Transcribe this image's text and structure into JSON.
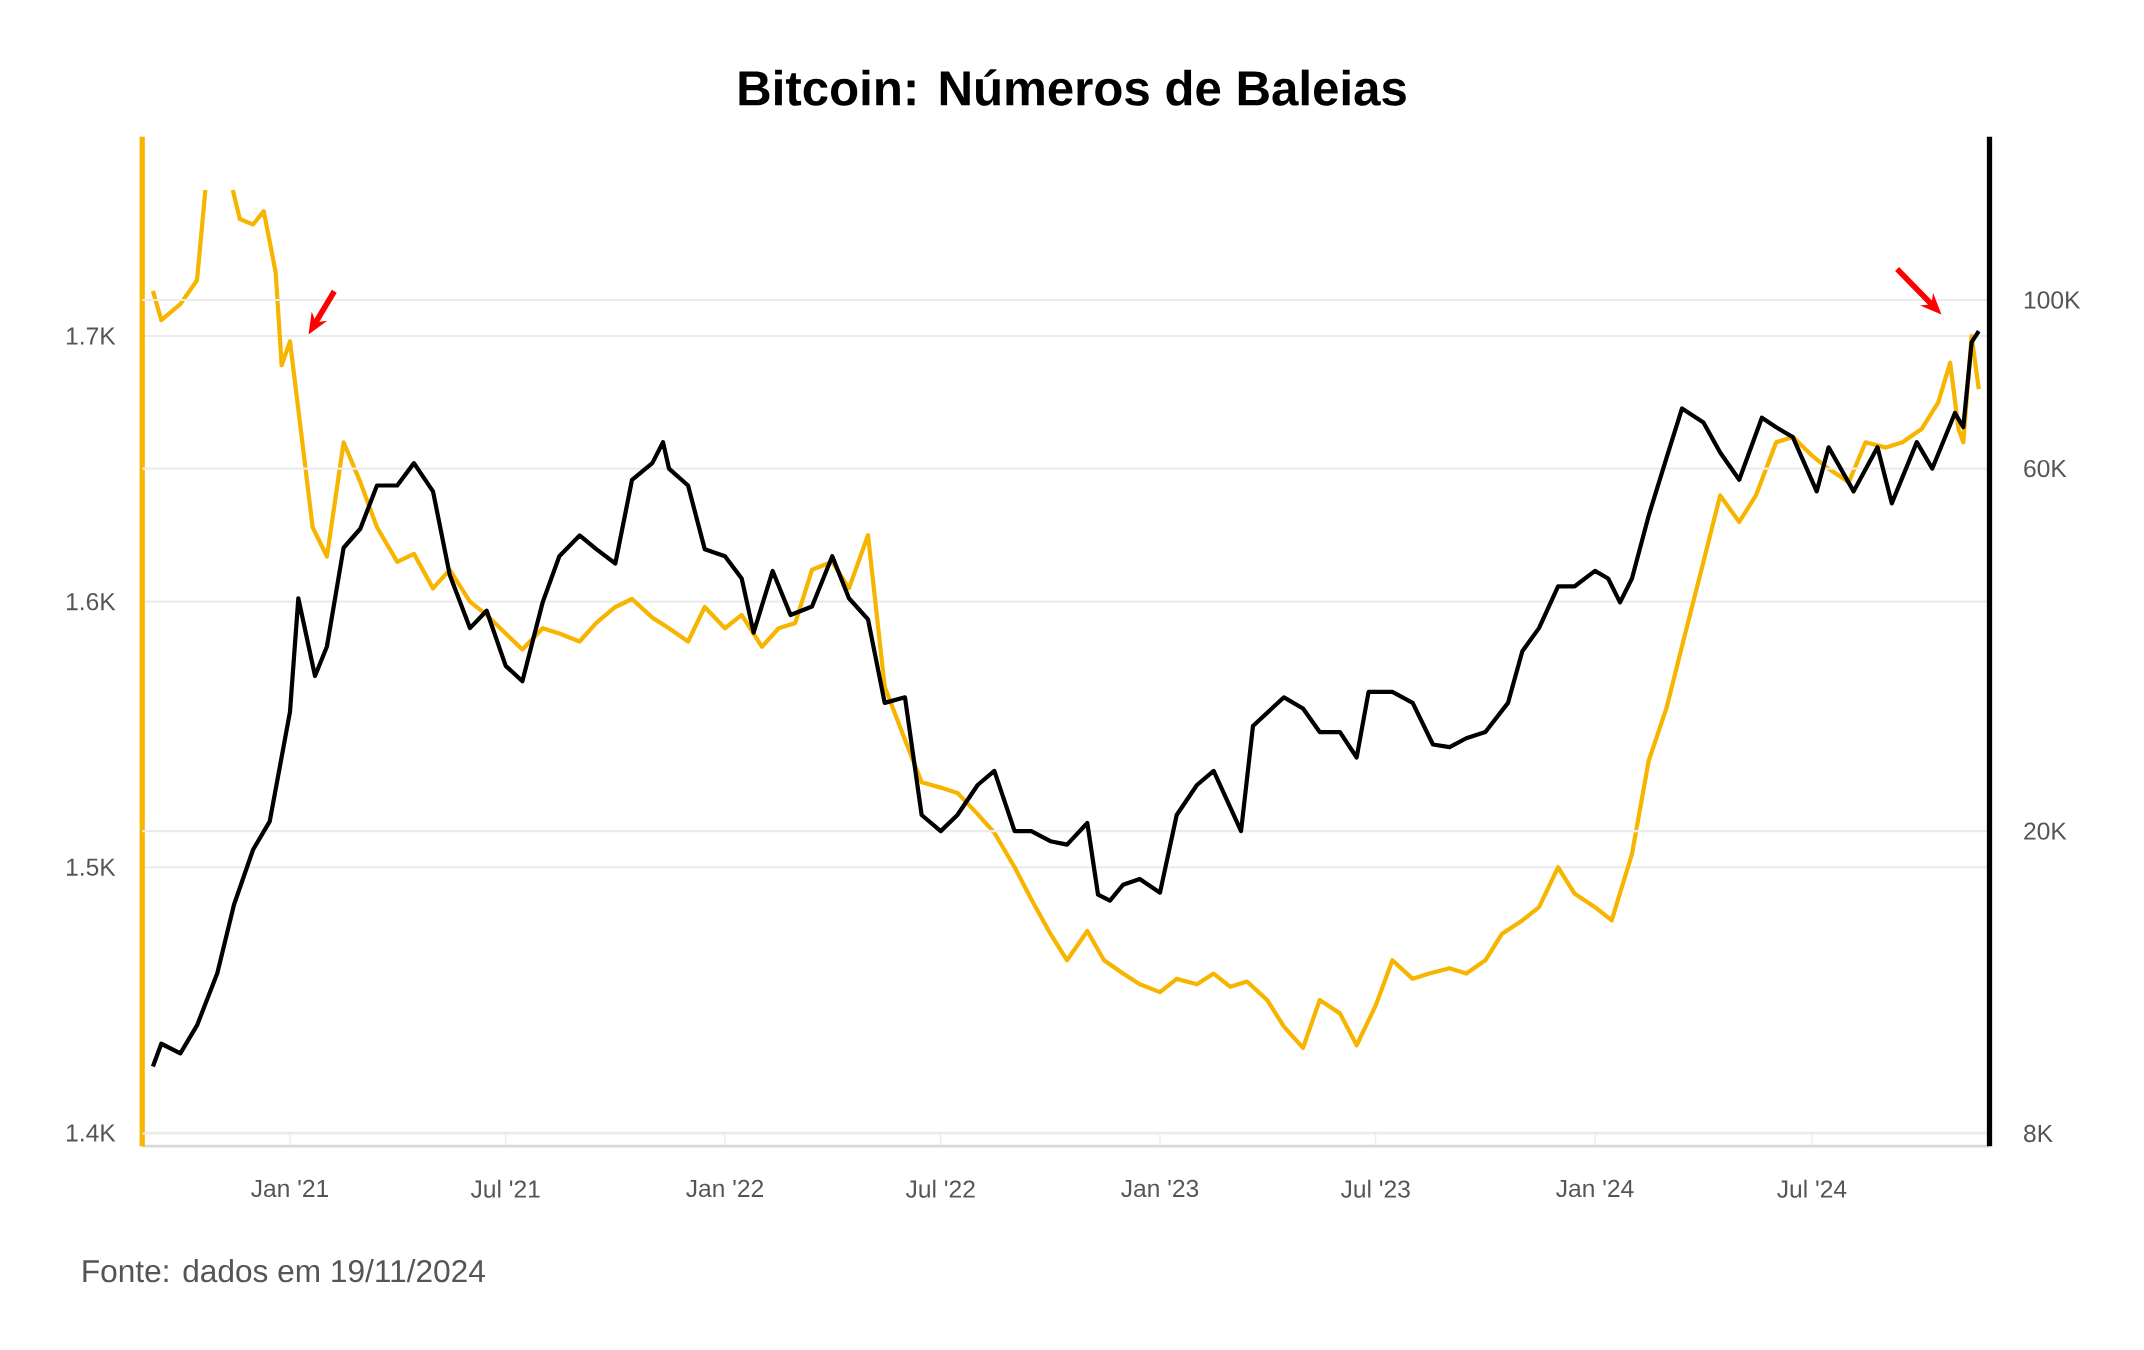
{
  "chart_data": {
    "type": "line",
    "title": "Bitcoin: Números de Baleias",
    "annotations": [
      "Fonte: dados em 19/11/2024"
    ],
    "grid": "y",
    "log": "y2",
    "xlim": [
      "2020-08-30",
      "2024-11-27"
    ],
    "xticks": [
      {
        "value": "2021-01-01",
        "label": "Jan '21"
      },
      {
        "value": "2021-07-01",
        "label": "Jul '21"
      },
      {
        "value": "2022-01-01",
        "label": "Jan '22"
      },
      {
        "value": "2022-07-01",
        "label": "Jul '22"
      },
      {
        "value": "2023-01-01",
        "label": "Jan '23"
      },
      {
        "value": "2023-07-01",
        "label": "Jul '23"
      },
      {
        "value": "2024-01-01",
        "label": "Jan '24"
      },
      {
        "value": "2024-07-01",
        "label": "Jul '24"
      }
    ],
    "ylim": [
      1395,
      1775
    ],
    "yticks": [
      {
        "value": 1400,
        "label": "1.4K"
      },
      {
        "value": 1500,
        "label": "1.5K"
      },
      {
        "value": 1600,
        "label": "1.6K"
      },
      {
        "value": 1700,
        "label": "1.7K"
      }
    ],
    "y2lim": [
      7700,
      164000
    ],
    "y2ticks": [
      {
        "value": 8000,
        "label": "8K"
      },
      {
        "value": 20000,
        "label": "20K"
      },
      {
        "value": 60000,
        "label": "60K"
      },
      {
        "value": 100000,
        "label": "100K"
      }
    ],
    "series": [
      {
        "color": "#f7b500",
        "x": [
          "2020-09-08",
          "2020-09-15",
          "2020-10-01",
          "2020-10-15",
          "2020-10-22",
          "2020-11-01",
          "2020-11-14",
          "2020-11-20",
          "2020-12-01",
          "2020-12-10",
          "2020-12-20",
          "2020-12-25",
          "2021-01-01",
          "2021-01-10",
          "2021-01-20",
          "2021-02-01",
          "2021-02-15",
          "2021-03-01",
          "2021-03-15",
          "2021-04-01",
          "2021-04-15",
          "2021-05-01",
          "2021-05-15",
          "2021-06-01",
          "2021-06-15",
          "2021-07-01",
          "2021-07-15",
          "2021-08-01",
          "2021-08-15",
          "2021-09-01",
          "2021-09-15",
          "2021-10-01",
          "2021-10-15",
          "2021-11-01",
          "2021-11-15",
          "2021-12-01",
          "2021-12-15",
          "2022-01-01",
          "2022-01-15",
          "2022-02-01",
          "2022-02-15",
          "2022-03-01",
          "2022-03-15",
          "2022-04-01",
          "2022-04-15",
          "2022-05-01",
          "2022-05-15",
          "2022-06-01",
          "2022-06-15",
          "2022-07-01",
          "2022-07-15",
          "2022-08-01",
          "2022-08-15",
          "2022-09-01",
          "2022-09-15",
          "2022-10-01",
          "2022-10-15",
          "2022-11-01",
          "2022-11-15",
          "2022-12-01",
          "2022-12-15",
          "2023-01-01",
          "2023-01-15",
          "2023-02-01",
          "2023-02-15",
          "2023-03-01",
          "2023-03-15",
          "2023-04-01",
          "2023-04-15",
          "2023-05-01",
          "2023-05-15",
          "2023-06-01",
          "2023-06-15",
          "2023-07-01",
          "2023-07-15",
          "2023-08-01",
          "2023-08-15",
          "2023-09-01",
          "2023-09-15",
          "2023-10-01",
          "2023-10-15",
          "2023-11-01",
          "2023-11-15",
          "2023-12-01",
          "2023-12-15",
          "2024-01-01",
          "2024-01-15",
          "2024-02-01",
          "2024-02-15",
          "2024-03-01",
          "2024-03-15",
          "2024-04-01",
          "2024-04-15",
          "2024-05-01",
          "2024-05-15",
          "2024-06-01",
          "2024-06-15",
          "2024-07-01",
          "2024-07-15",
          "2024-08-01",
          "2024-08-15",
          "2024-09-01",
          "2024-09-15",
          "2024-10-01",
          "2024-10-15",
          "2024-10-25",
          "2024-11-01",
          "2024-11-05",
          "2024-11-12",
          "2024-11-18"
        ],
        "values": [
          1717,
          1706,
          1712,
          1721,
          1755,
          null,
          1755,
          1744,
          1742,
          1747,
          1724,
          1689,
          1698,
          1665,
          1628,
          1617,
          1660,
          1645,
          1628,
          1615,
          1618,
          1605,
          1612,
          1600,
          1595,
          1588,
          1582,
          1590,
          1588,
          1585,
          1592,
          1598,
          1601,
          1594,
          1590,
          1585,
          1598,
          1590,
          1595,
          1583,
          1590,
          1592,
          1612,
          1615,
          1605,
          1625,
          1568,
          1548,
          1532,
          1530,
          1528,
          1520,
          1513,
          1500,
          1488,
          1475,
          1465,
          1476,
          1465,
          1460,
          1456,
          1453,
          1458,
          1456,
          1460,
          1455,
          1457,
          1450,
          1440,
          1432,
          1450,
          1445,
          1433,
          1448,
          1465,
          1458,
          1460,
          1462,
          1460,
          1465,
          1475,
          1480,
          1485,
          1500,
          1490,
          1485,
          1480,
          1505,
          1540,
          1560,
          1585,
          1615,
          1640,
          1630,
          1640,
          1660,
          1662,
          1655,
          1650,
          1645,
          1660,
          1658,
          1660,
          1665,
          1675,
          1690,
          1665,
          1660,
          1700,
          1680
        ]
      },
      {
        "color": "#000000",
        "axis": "y2",
        "x": [
          "2020-09-08",
          "2020-09-15",
          "2020-10-01",
          "2020-10-15",
          "2020-11-01",
          "2020-11-15",
          "2020-12-01",
          "2020-12-15",
          "2021-01-01",
          "2021-01-08",
          "2021-01-22",
          "2021-02-01",
          "2021-02-15",
          "2021-03-01",
          "2021-03-15",
          "2021-04-01",
          "2021-04-15",
          "2021-05-01",
          "2021-05-15",
          "2021-06-01",
          "2021-06-15",
          "2021-07-01",
          "2021-07-15",
          "2021-08-01",
          "2021-08-15",
          "2021-09-01",
          "2021-09-15",
          "2021-10-01",
          "2021-10-15",
          "2021-11-01",
          "2021-11-10",
          "2021-11-15",
          "2021-12-01",
          "2021-12-15",
          "2022-01-01",
          "2022-01-15",
          "2022-01-25",
          "2022-02-10",
          "2022-02-25",
          "2022-03-15",
          "2022-04-01",
          "2022-04-15",
          "2022-05-01",
          "2022-05-15",
          "2022-06-01",
          "2022-06-15",
          "2022-07-01",
          "2022-07-15",
          "2022-08-01",
          "2022-08-15",
          "2022-09-01",
          "2022-09-15",
          "2022-10-01",
          "2022-10-15",
          "2022-11-01",
          "2022-11-10",
          "2022-11-20",
          "2022-12-01",
          "2022-12-15",
          "2023-01-01",
          "2023-01-15",
          "2023-02-01",
          "2023-02-15",
          "2023-03-10",
          "2023-03-20",
          "2023-04-15",
          "2023-05-01",
          "2023-05-15",
          "2023-06-01",
          "2023-06-15",
          "2023-06-25",
          "2023-07-15",
          "2023-08-01",
          "2023-08-18",
          "2023-09-01",
          "2023-09-15",
          "2023-10-01",
          "2023-10-20",
          "2023-11-01",
          "2023-11-15",
          "2023-12-01",
          "2023-12-15",
          "2024-01-01",
          "2024-01-12",
          "2024-01-22",
          "2024-02-01",
          "2024-02-15",
          "2024-03-01",
          "2024-03-14",
          "2024-04-01",
          "2024-04-15",
          "2024-05-01",
          "2024-05-20",
          "2024-06-01",
          "2024-06-15",
          "2024-07-05",
          "2024-07-15",
          "2024-08-05",
          "2024-08-25",
          "2024-09-06",
          "2024-09-27",
          "2024-10-10",
          "2024-10-29",
          "2024-11-05",
          "2024-11-12",
          "2024-11-18"
        ],
        "values": [
          9800,
          10500,
          10200,
          11100,
          13000,
          16000,
          18900,
          20600,
          28700,
          40500,
          32000,
          35000,
          47200,
          50000,
          57000,
          57000,
          61000,
          56000,
          43500,
          37000,
          39000,
          33000,
          31500,
          40000,
          46000,
          49000,
          47000,
          45000,
          58000,
          61000,
          65000,
          60000,
          57000,
          47000,
          46000,
          43000,
          36500,
          44000,
          38500,
          39500,
          46000,
          40500,
          38000,
          29500,
          30000,
          21000,
          20000,
          21000,
          23000,
          24000,
          20000,
          20000,
          19400,
          19200,
          20500,
          16500,
          16200,
          17000,
          17300,
          16600,
          21000,
          23000,
          24000,
          20000,
          27500,
          30000,
          29000,
          27000,
          27000,
          25000,
          30500,
          30500,
          29500,
          26000,
          25800,
          26500,
          27000,
          29500,
          34500,
          37000,
          42000,
          42000,
          44000,
          43000,
          40000,
          43000,
          52000,
          62000,
          72000,
          69000,
          63000,
          58000,
          70000,
          68000,
          66000,
          56000,
          64000,
          56000,
          64000,
          54000,
          65000,
          60000,
          71000,
          68000,
          88000,
          91000
        ]
      }
    ]
  }
}
